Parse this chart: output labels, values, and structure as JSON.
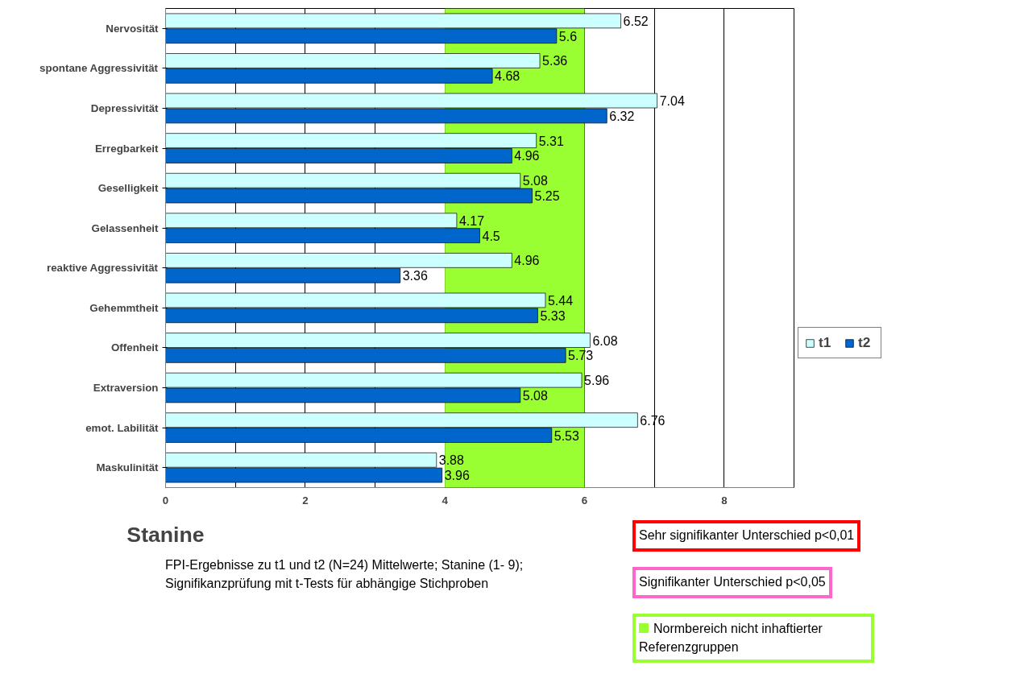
{
  "chart_data": {
    "type": "bar",
    "orientation": "horizontal",
    "xlabel": "Stanine",
    "categories": [
      "Nervosität",
      "spontane Aggressivität",
      "Depressivität",
      "Erregbarkeit",
      "Geselligkeit",
      "Gelassenheit",
      "reaktive Aggressivität",
      "Gehemmtheit",
      "Offenheit",
      "Extraversion",
      "emot. Labilität",
      "Maskulinität"
    ],
    "series": [
      {
        "name": "t1",
        "color": "#ccffff",
        "values": [
          6.52,
          5.36,
          7.04,
          5.31,
          5.08,
          4.17,
          4.96,
          5.44,
          6.08,
          5.96,
          6.76,
          3.88
        ]
      },
      {
        "name": "t2",
        "color": "#0066cc",
        "values": [
          5.6,
          4.68,
          6.32,
          4.96,
          5.25,
          4.5,
          3.36,
          5.33,
          5.73,
          5.08,
          5.53,
          3.96
        ]
      }
    ],
    "data_labels": true,
    "xlim": [
      0,
      9
    ],
    "xticks": [
      0,
      {
        "value": 1,
        "label": null
      },
      2,
      {
        "value": 3,
        "label": null
      },
      4,
      {
        "value": 5,
        "label": null
      },
      6,
      {
        "value": 7,
        "label": null
      },
      8,
      {
        "value": 9,
        "label": null
      }
    ],
    "grid": "x",
    "legend": "right",
    "bands": [
      {
        "axis": "x",
        "from": 4,
        "to": 6,
        "label": "Normbereich nicht inhaftierter Referenzgruppen",
        "color": "#99ff33"
      }
    ],
    "annotations": [
      "FPI-Ergebnisse zu t1 und t2 (N=24) Mittelwerte; Stanine (1- 9); Signifikanzprüfung mit t-Tests für abhängige Stichproben",
      "Sehr signifikanter Unterschied p<0,01",
      "Signifikanter Unterschied p<0,05"
    ]
  }
}
